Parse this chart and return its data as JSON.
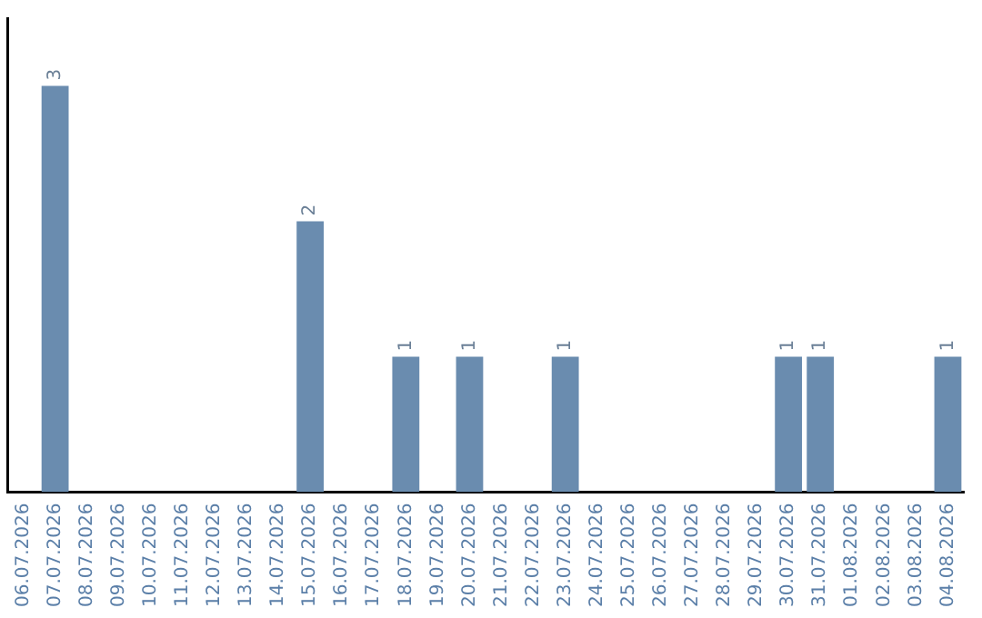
{
  "chart_data": {
    "type": "bar",
    "categories": [
      "06.07.2026",
      "07.07.2026",
      "08.07.2026",
      "09.07.2026",
      "10.07.2026",
      "11.07.2026",
      "12.07.2026",
      "13.07.2026",
      "14.07.2026",
      "15.07.2026",
      "16.07.2026",
      "17.07.2026",
      "18.07.2026",
      "19.07.2026",
      "20.07.2026",
      "21.07.2026",
      "22.07.2026",
      "23.07.2026",
      "24.07.2026",
      "25.07.2026",
      "26.07.2026",
      "27.07.2026",
      "28.07.2026",
      "29.07.2026",
      "30.07.2026",
      "31.07.2026",
      "01.08.2026",
      "02.08.2026",
      "03.08.2026",
      "04.08.2026"
    ],
    "values": [
      0,
      3,
      0,
      0,
      0,
      0,
      0,
      0,
      0,
      2,
      0,
      0,
      1,
      0,
      1,
      0,
      0,
      1,
      0,
      0,
      0,
      0,
      0,
      0,
      1,
      1,
      0,
      0,
      0,
      1
    ],
    "value_labels": [
      null,
      "3",
      null,
      null,
      null,
      null,
      null,
      null,
      null,
      "2",
      null,
      null,
      "1",
      null,
      "1",
      null,
      null,
      "1",
      null,
      null,
      null,
      null,
      null,
      null,
      "1",
      "1",
      null,
      null,
      null,
      "1"
    ],
    "color": "#6a8caf",
    "grid": false,
    "legend": false,
    "tick_labels": "x"
  }
}
